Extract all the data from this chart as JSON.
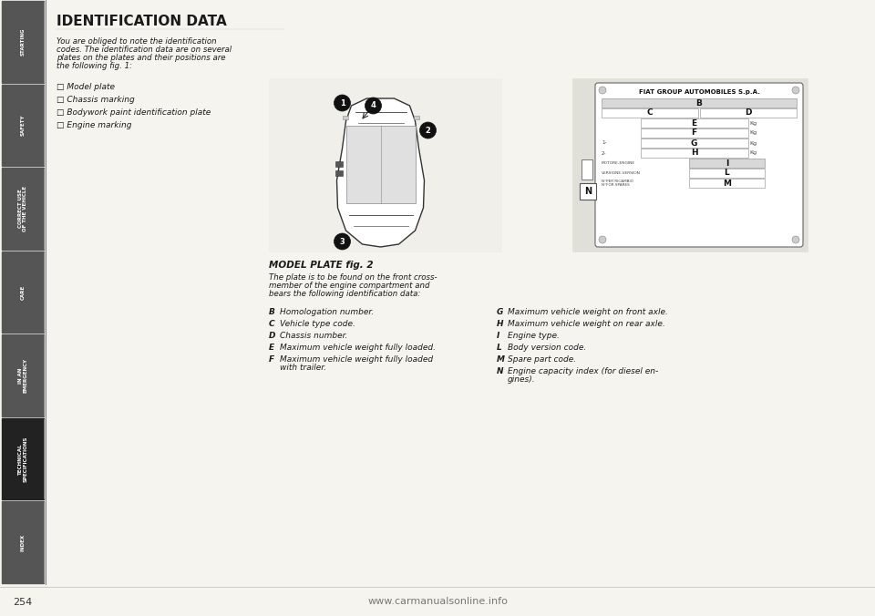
{
  "title": "IDENTIFICATION DATA",
  "intro_lines": [
    "You are obliged to note the identification",
    "codes. The identification data are on several",
    "plates on the plates and their positions are",
    "the following fig. 1:"
  ],
  "left_bullets": [
    "□ Model plate",
    "□ Chassis marking",
    "□ Bodywork paint identification plate",
    "□ Engine marking"
  ],
  "model_plate_title": "MODEL PLATE fig. 2",
  "model_plate_desc_lines": [
    "The plate is to be found on the front cross-",
    "member of the engine compartment and",
    "bears the following identification data:"
  ],
  "mp_left_items": [
    [
      "B",
      "Homologation number."
    ],
    [
      "C",
      "Vehicle type code."
    ],
    [
      "D",
      "Chassis number."
    ],
    [
      "E",
      "Maximum vehicle weight fully loaded."
    ],
    [
      "F",
      "Maximum vehicle weight fully loaded\n    with trailer."
    ]
  ],
  "mp_right_items": [
    [
      "G",
      "Maximum vehicle weight on front axle."
    ],
    [
      "H",
      "Maximum vehicle weight on rear axle."
    ],
    [
      "I",
      "Engine type."
    ],
    [
      "L",
      "Body version code."
    ],
    [
      "M",
      "Spare part code."
    ],
    [
      "N",
      "Engine capacity index (for diesel en-\n    gines)."
    ]
  ],
  "plate_header": "FIAT GROUP AUTOMOBILES S.p.A.",
  "sidebar_tabs": [
    "STARTING",
    "SAFETY",
    "CORRECT USE OF THE VEHICLE",
    "CARE",
    "IN AN EMERGENCY",
    "TECHNICAL\nSPECIFICATIONS",
    "INDEX"
  ],
  "sidebar_active": 5,
  "page_number": "254",
  "footer_url": "www.carmanualsonline.info",
  "bg_color": "#f5f4ef",
  "content_bg": "#ffffff",
  "sidebar_bg": "#1a1a1a",
  "sidebar_inactive": "#888888",
  "text_color": "#1a1a1a",
  "gray_box": "#e8e8e4"
}
